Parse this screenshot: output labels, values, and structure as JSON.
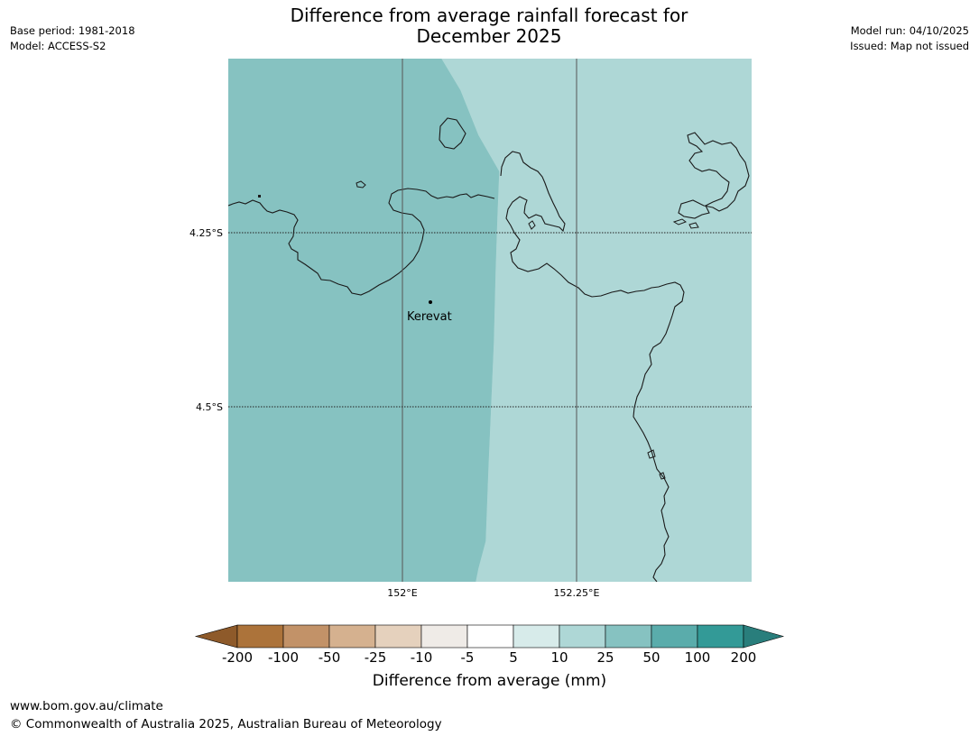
{
  "title_line1": "Difference from average rainfall forecast for",
  "title_line2": "December 2025",
  "meta": {
    "base_period": "Base period: 1981-2018",
    "model": "Model: ACCESS-S2",
    "model_run": "Model run: 04/10/2025",
    "issued": "Issued: Map not issued"
  },
  "map": {
    "lat_labels": [
      "4.25°S",
      "4.5°S"
    ],
    "lon_labels": [
      "152°E",
      "152.25°E"
    ],
    "place": "Kerevat",
    "region_values": [
      {
        "category": "25 to 50",
        "color": "#86c2c1"
      },
      {
        "category": "10 to 25",
        "color": "#aed7d6"
      }
    ]
  },
  "colorbar": {
    "ticks": [
      "-200",
      "-100",
      "-50",
      "-25",
      "-10",
      "-5",
      "5",
      "10",
      "25",
      "50",
      "100",
      "200"
    ],
    "colors": [
      "#8e5a2a",
      "#ac733a",
      "#c29268",
      "#d5b18f",
      "#e5d1bd",
      "#efebe7",
      "#ffffff",
      "#d7ebea",
      "#aed7d6",
      "#86c2c1",
      "#5aacab",
      "#339a97",
      "#297e7c"
    ],
    "label": "Difference from average (mm)"
  },
  "footer": {
    "url": "www.bom.gov.au/climate",
    "copyright": "© Commonwealth of Australia 2025, Australian Bureau of Meteorology"
  }
}
